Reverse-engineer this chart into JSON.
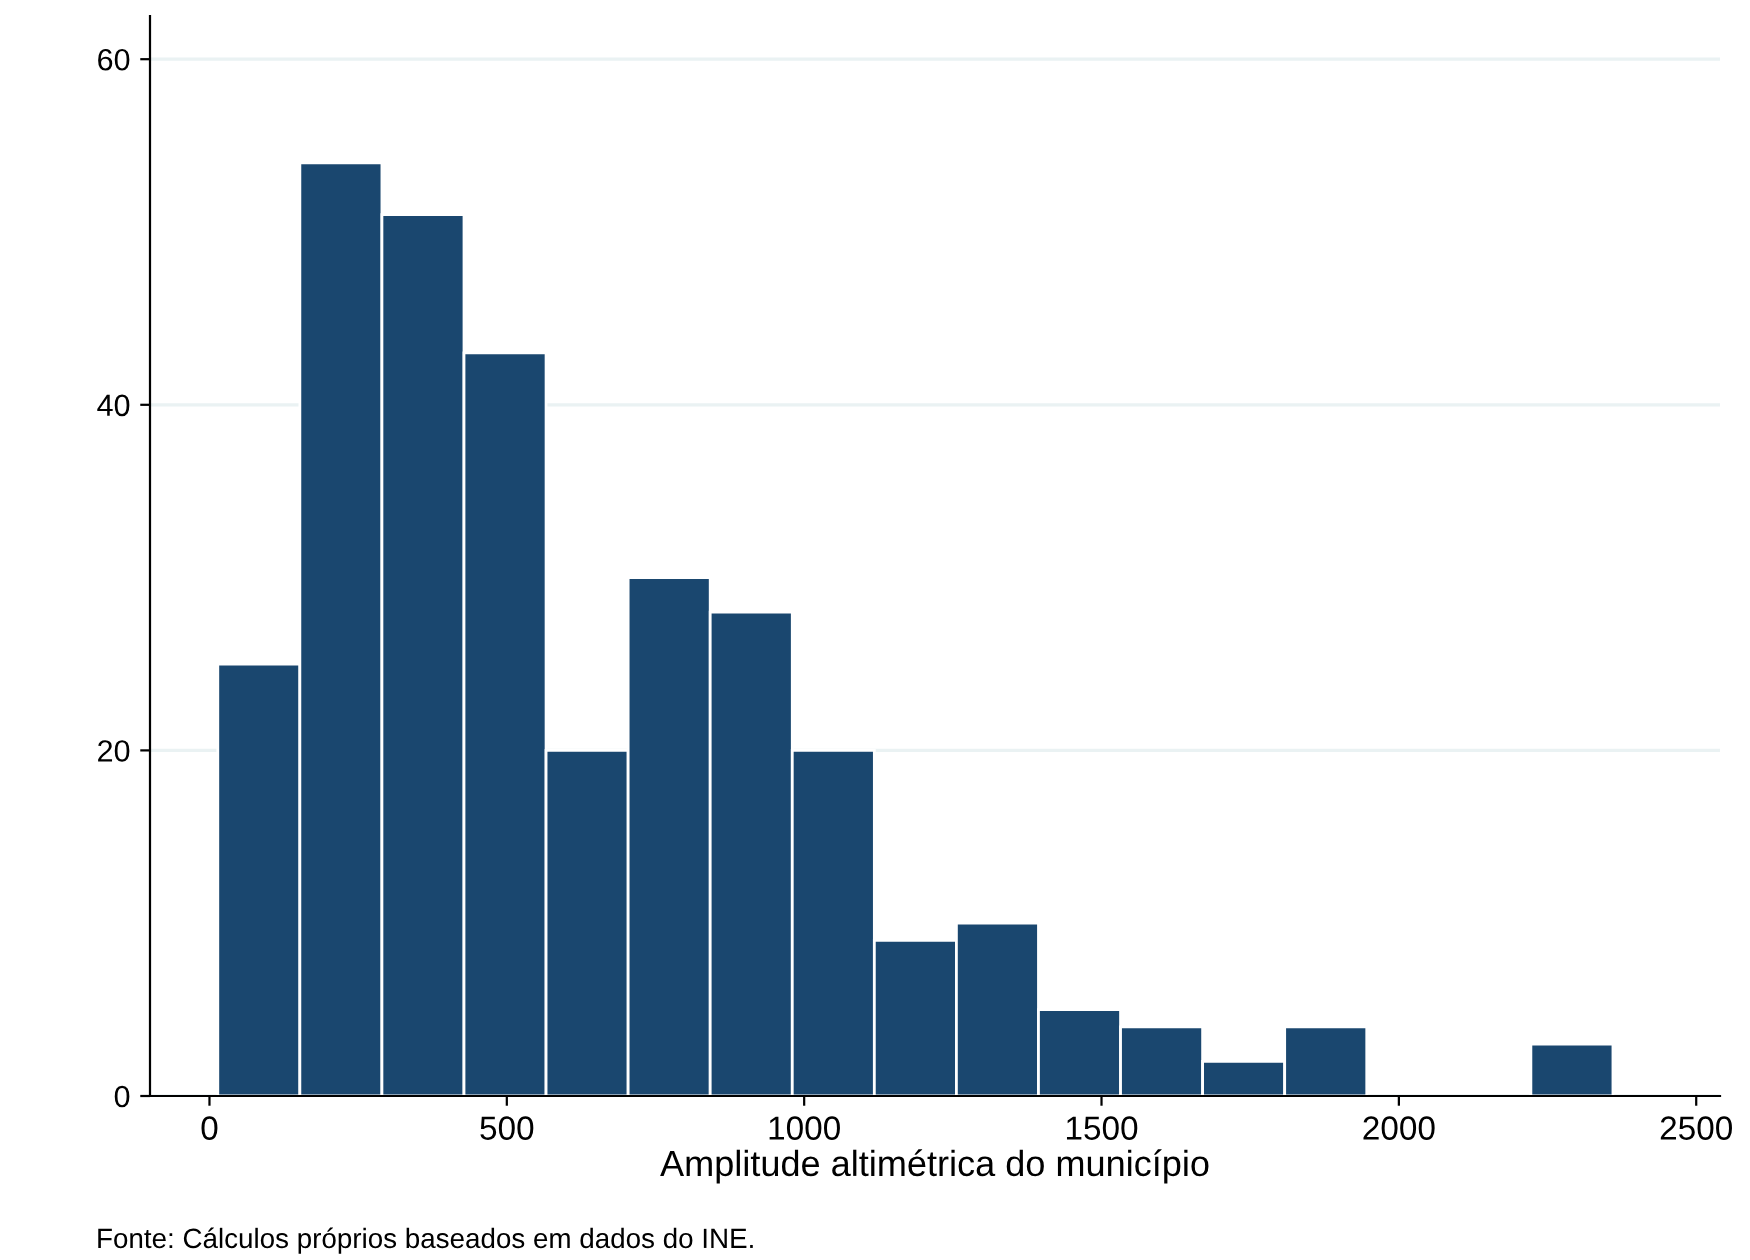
{
  "chart_data": {
    "type": "histogram",
    "xlabel": "Amplitude altimétrica do município",
    "bins": [
      14,
      152,
      290,
      428,
      566,
      704,
      842,
      980,
      1118,
      1256,
      1394,
      1532,
      1670,
      1808,
      1946,
      2084,
      2222,
      2360
    ],
    "values": [
      25,
      54,
      51,
      43,
      20,
      30,
      28,
      20,
      9,
      10,
      5,
      4,
      2,
      4,
      0,
      0,
      3
    ],
    "color": "#1a476f",
    "xlim": [
      -100,
      2540
    ],
    "xticks": [
      0,
      500,
      1000,
      1500,
      2000,
      2500
    ],
    "ylim": [
      0,
      62.5
    ],
    "yticks": [
      0,
      20,
      40,
      60
    ],
    "grid": "y",
    "annotations": [
      "Fonte: Cálculos próprios baseados em dados do INE."
    ]
  }
}
